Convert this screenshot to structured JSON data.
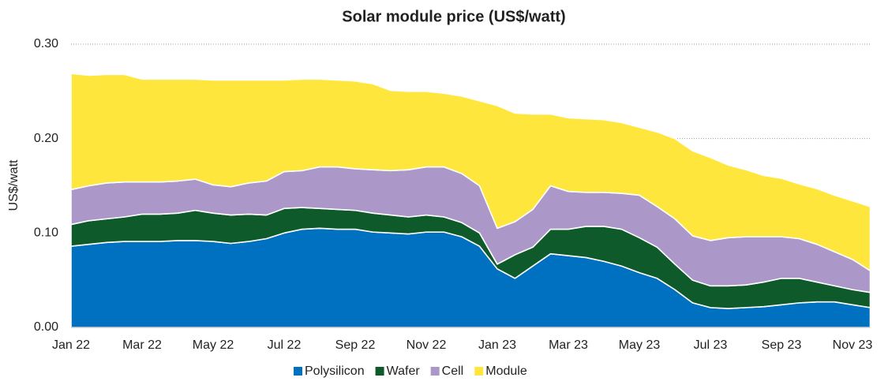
{
  "chart_data": {
    "type": "stacked_area",
    "title": "Solar module price (US$/watt)",
    "y_label": "US$/watt",
    "categories": [
      "Jan 22",
      null,
      null,
      null,
      "Mar 22",
      null,
      null,
      null,
      "May 22",
      null,
      null,
      null,
      "Jul 22",
      null,
      null,
      null,
      "Sep 22",
      null,
      null,
      null,
      "Nov 22",
      null,
      null,
      null,
      "Jan 23",
      null,
      null,
      null,
      "Mar 23",
      null,
      null,
      null,
      "May 23",
      null,
      null,
      null,
      "Jul 23",
      null,
      null,
      null,
      "Sep 23",
      null,
      null,
      null,
      "Nov 23",
      null
    ],
    "series": [
      {
        "name": "Polysilicon",
        "color": "#0070c0",
        "values": [
          0.086,
          0.088,
          0.09,
          0.091,
          0.091,
          0.091,
          0.092,
          0.092,
          0.091,
          0.089,
          0.091,
          0.094,
          0.1,
          0.104,
          0.105,
          0.104,
          0.104,
          0.101,
          0.1,
          0.099,
          0.101,
          0.101,
          0.096,
          0.086,
          0.062,
          0.052,
          0.065,
          0.078,
          0.076,
          0.074,
          0.07,
          0.065,
          0.058,
          0.052,
          0.04,
          0.026,
          0.021,
          0.02,
          0.021,
          0.022,
          0.024,
          0.026,
          0.027,
          0.027,
          0.024,
          0.021
        ]
      },
      {
        "name": "Wafer",
        "color": "#0f5a2a",
        "values": [
          0.023,
          0.025,
          0.025,
          0.026,
          0.029,
          0.029,
          0.029,
          0.032,
          0.03,
          0.03,
          0.029,
          0.025,
          0.026,
          0.023,
          0.021,
          0.021,
          0.02,
          0.02,
          0.019,
          0.018,
          0.018,
          0.016,
          0.015,
          0.014,
          0.005,
          0.025,
          0.02,
          0.026,
          0.028,
          0.033,
          0.037,
          0.039,
          0.037,
          0.033,
          0.027,
          0.024,
          0.023,
          0.024,
          0.024,
          0.026,
          0.028,
          0.026,
          0.021,
          0.017,
          0.016,
          0.016
        ]
      },
      {
        "name": "Cell",
        "color": "#ab97c8",
        "values": [
          0.037,
          0.037,
          0.038,
          0.037,
          0.034,
          0.034,
          0.034,
          0.033,
          0.03,
          0.03,
          0.033,
          0.036,
          0.039,
          0.039,
          0.044,
          0.045,
          0.044,
          0.046,
          0.047,
          0.05,
          0.051,
          0.053,
          0.052,
          0.05,
          0.038,
          0.035,
          0.04,
          0.046,
          0.04,
          0.036,
          0.036,
          0.038,
          0.045,
          0.043,
          0.048,
          0.047,
          0.048,
          0.051,
          0.051,
          0.048,
          0.044,
          0.042,
          0.04,
          0.036,
          0.032,
          0.023
        ]
      },
      {
        "name": "Module",
        "color": "#ffe63c",
        "values": [
          0.123,
          0.117,
          0.115,
          0.114,
          0.109,
          0.109,
          0.108,
          0.106,
          0.111,
          0.113,
          0.109,
          0.107,
          0.097,
          0.097,
          0.093,
          0.092,
          0.093,
          0.091,
          0.085,
          0.083,
          0.08,
          0.078,
          0.082,
          0.09,
          0.13,
          0.115,
          0.101,
          0.076,
          0.078,
          0.078,
          0.077,
          0.075,
          0.072,
          0.079,
          0.085,
          0.09,
          0.088,
          0.077,
          0.071,
          0.065,
          0.062,
          0.058,
          0.059,
          0.06,
          0.062,
          0.068
        ]
      }
    ],
    "ylim": [
      0,
      0.3
    ],
    "yticks": [
      {
        "value": 0,
        "label": "0.00"
      },
      {
        "value": 0.1,
        "label": "0.10"
      },
      {
        "value": 0.2,
        "label": "0.20"
      },
      {
        "value": 0.3,
        "label": "0.30"
      }
    ],
    "grid": true,
    "legend": "bottom"
  }
}
